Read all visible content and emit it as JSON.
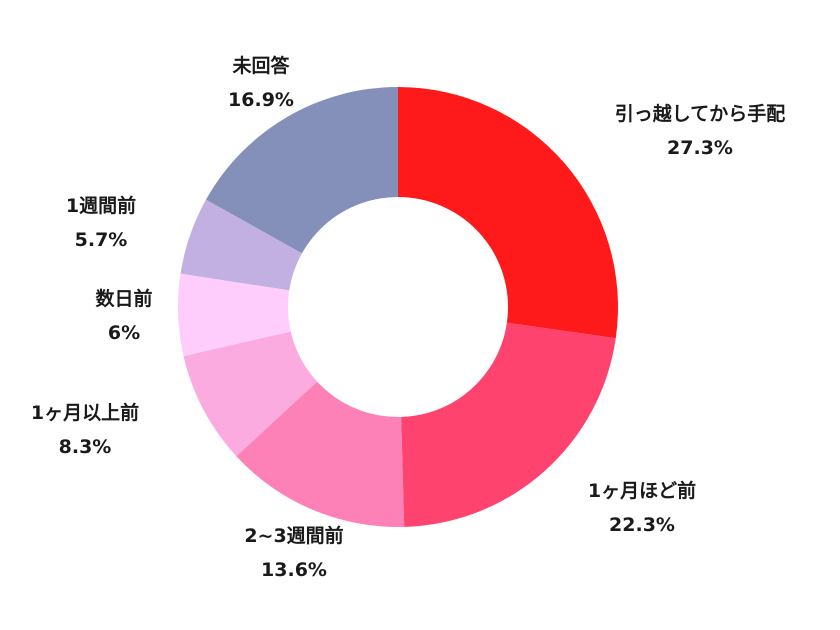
{
  "chart_data": {
    "type": "pie",
    "donut": true,
    "categories": [
      "引っ越してから手配",
      "1ヶ月ほど前",
      "2~3週間前",
      "1ヶ月以上前",
      "数日前",
      "1週間前",
      "未回答"
    ],
    "values": [
      27.3,
      22.3,
      13.6,
      8.3,
      6,
      5.7,
      16.9
    ],
    "value_labels": [
      "27.3%",
      "22.3%",
      "13.6%",
      "8.3%",
      "6%",
      "5.7%",
      "16.9%"
    ],
    "colors": [
      "#fe1a1a",
      "#fe436e",
      "#fd81b7",
      "#fcabe1",
      "#fecdfc",
      "#c3b0e2",
      "#8590ba"
    ],
    "start": "12 o'clock",
    "direction": "clockwise",
    "title": "",
    "legend": "none"
  }
}
